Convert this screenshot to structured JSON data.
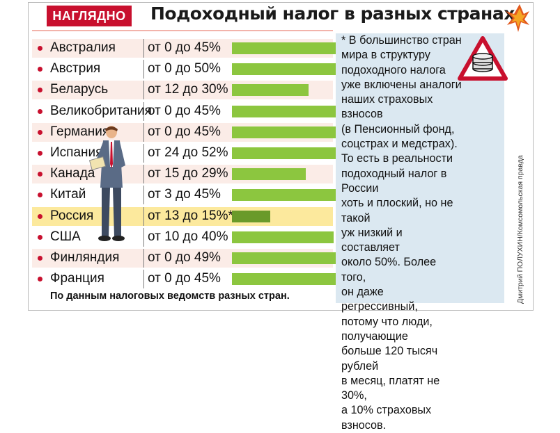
{
  "header": {
    "badge": "НАГЛЯДНО",
    "title": "Подоходный налог в разных странах"
  },
  "note": "* В большинство стран\nмира в структуру\nподоходного налога\nуже включены аналоги\nнаших страховых взносов\n(в Пенсионный фонд,\nсоцстрах и медстрах).\nТо есть в реальности\nподоходный налог в России\nхоть и плоский, но не такой\nуж низкий и составляет\nоколо 50%. Более того,\nон даже регрессивный,\nпотому что люди, получающие\nбольше 120 тысяч рублей\nв месяц, платят не 30%,\nа 10% страховых взносов.",
  "credit": "Дмитрий ПОЛУХИН/Комсомольская правда",
  "source": "По данным налоговых ведомств разных стран.",
  "chart_data": {
    "type": "bar",
    "orientation": "horizontal",
    "categories": [
      "Австралия",
      "Австрия",
      "Беларусь",
      "Великобритания",
      "Германия",
      "Испания",
      "Канада",
      "Китай",
      "Россия",
      "США",
      "Финляндия",
      "Франция"
    ],
    "labels": [
      "от 0 до 45%",
      "от 0 до 50%",
      "от 12 до 30%",
      "от 0 до 45%",
      "от 0 до 45%",
      "от 24 до 52%",
      "от 15 до 29%",
      "от 3 до 45%",
      "от 13 до 15%*",
      "от 10 до 40%",
      "от 0 до 49%",
      "от 0 до 45%"
    ],
    "series": [
      {
        "values": [
          45,
          50,
          30,
          45,
          45,
          52,
          29,
          45,
          15,
          40,
          49,
          45
        ]
      }
    ],
    "xlim": [
      0,
      52
    ],
    "highlight": "Россия",
    "colors": {
      "bar": "#8cc63f",
      "highlight_bar": "#6a9a2a",
      "highlight_row": "#fce99d",
      "alt_row": "#fbece7",
      "accent": "#c8102e"
    },
    "title": "",
    "xlabel": "",
    "ylabel": ""
  }
}
